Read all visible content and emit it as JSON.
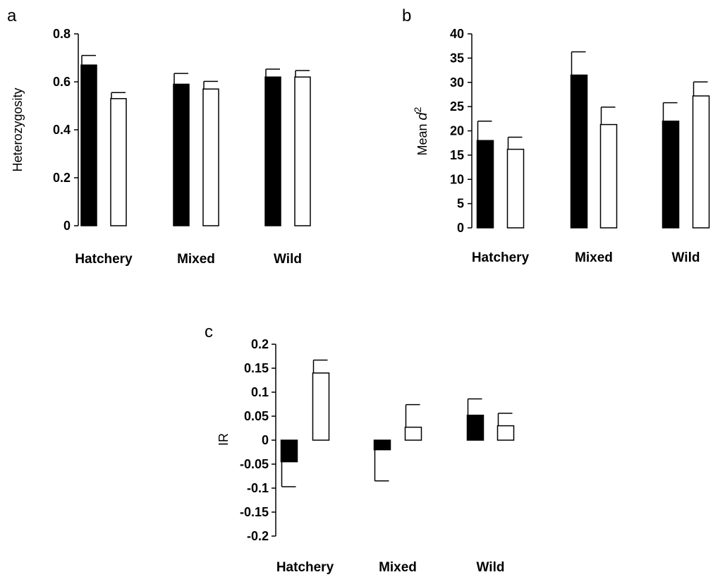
{
  "chart_data": [
    {
      "panel": "a",
      "type": "bar",
      "ylabel": "Heterozygosity",
      "ylim": [
        0,
        0.8
      ],
      "yticks": [
        "0",
        "0.2",
        "0.4",
        "0.6",
        "0.8"
      ],
      "categories": [
        "Hatchery",
        "Mixed",
        "Wild"
      ],
      "series": [
        {
          "fill": "#000000",
          "values": [
            0.67,
            0.59,
            0.62
          ],
          "errors": [
            0.04,
            0.045,
            0.033
          ]
        },
        {
          "fill": "#ffffff",
          "values": [
            0.53,
            0.57,
            0.62
          ],
          "errors": [
            0.025,
            0.032,
            0.027
          ]
        }
      ]
    },
    {
      "panel": "b",
      "type": "bar",
      "ylabel_prefix": "Mean ",
      "ylabel_var": "d",
      "ylabel_sup": "2",
      "ylim": [
        0,
        40
      ],
      "yticks": [
        "0",
        "5",
        "10",
        "15",
        "20",
        "25",
        "30",
        "35",
        "40"
      ],
      "categories": [
        "Hatchery",
        "Mixed",
        "Wild"
      ],
      "series": [
        {
          "fill": "#000000",
          "values": [
            18,
            31.5,
            22
          ],
          "errors": [
            4,
            4.8,
            3.8
          ]
        },
        {
          "fill": "#ffffff",
          "values": [
            16.2,
            21.3,
            27.2
          ],
          "errors": [
            2.5,
            3.6,
            2.9
          ]
        }
      ]
    },
    {
      "panel": "c",
      "type": "bar",
      "ylabel": "IR",
      "ylim": [
        -0.2,
        0.2
      ],
      "yticks": [
        "-0.2",
        "-0.15",
        "-0.1",
        "-0.05",
        "0",
        "0.05",
        "0.1",
        "0.15",
        "0.2"
      ],
      "categories": [
        "Hatchery",
        "Mixed",
        "Wild"
      ],
      "series": [
        {
          "fill": "#000000",
          "values": [
            -0.045,
            -0.02,
            0.052
          ],
          "errors": [
            0.052,
            0.065,
            0.034
          ]
        },
        {
          "fill": "#ffffff",
          "values": [
            0.14,
            0.027,
            0.03
          ],
          "errors": [
            0.027,
            0.047,
            0.026
          ]
        }
      ]
    }
  ]
}
